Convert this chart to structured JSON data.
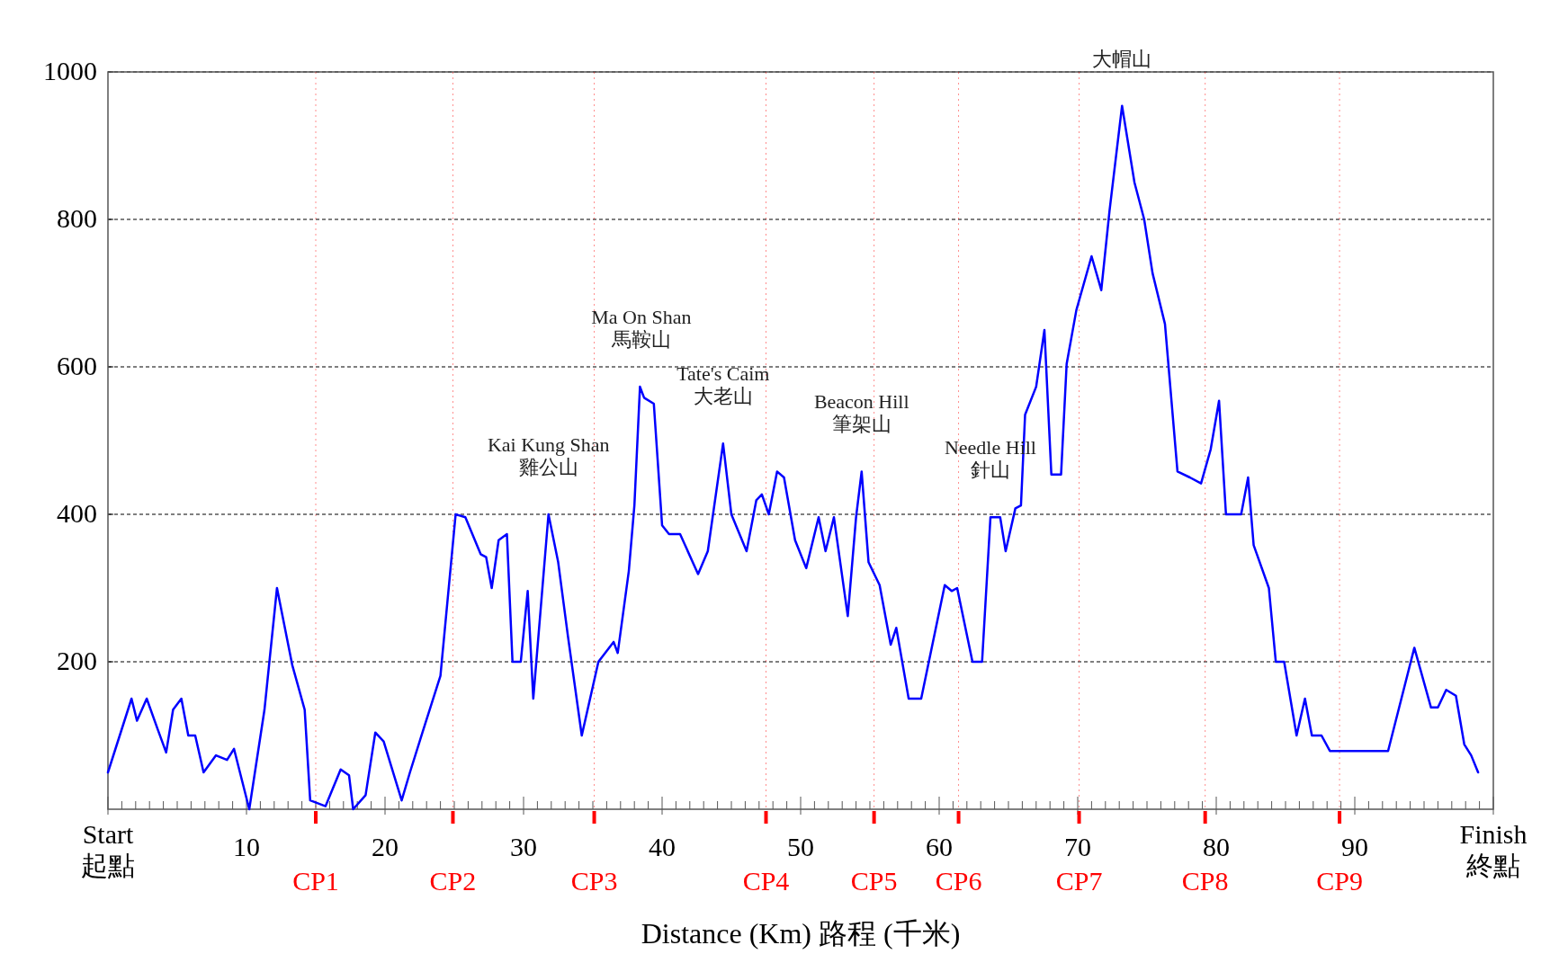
{
  "chart_data": {
    "type": "line",
    "xlabel": "Distance (Km) 路程 (千米)",
    "xlim": [
      0,
      100
    ],
    "ylim": [
      0,
      1000
    ],
    "yticks": [
      200,
      400,
      600,
      800,
      1000
    ],
    "xticks": [
      {
        "value": 0,
        "label": "Start\n起點"
      },
      {
        "value": 1,
        "label": null
      },
      {
        "value": 2,
        "label": null
      },
      {
        "value": 3,
        "label": null
      },
      {
        "value": 4,
        "label": null
      },
      {
        "value": 5,
        "label": null
      },
      {
        "value": 6,
        "label": null
      },
      {
        "value": 7,
        "label": null
      },
      {
        "value": 8,
        "label": null
      },
      {
        "value": 9,
        "label": null
      },
      10,
      {
        "value": 11,
        "label": null
      },
      {
        "value": 12,
        "label": null
      },
      {
        "value": 13,
        "label": null
      },
      {
        "value": 14,
        "label": null
      },
      {
        "value": 15,
        "label": null
      },
      {
        "value": 16,
        "label": null
      },
      {
        "value": 17,
        "label": null
      },
      {
        "value": 18,
        "label": null
      },
      {
        "value": 19,
        "label": null
      },
      20,
      {
        "value": 21,
        "label": null
      },
      {
        "value": 22,
        "label": null
      },
      {
        "value": 23,
        "label": null
      },
      {
        "value": 24,
        "label": null
      },
      {
        "value": 25,
        "label": null
      },
      {
        "value": 26,
        "label": null
      },
      {
        "value": 27,
        "label": null
      },
      {
        "value": 28,
        "label": null
      },
      {
        "value": 29,
        "label": null
      },
      30,
      {
        "value": 31,
        "label": null
      },
      {
        "value": 32,
        "label": null
      },
      {
        "value": 33,
        "label": null
      },
      {
        "value": 34,
        "label": null
      },
      {
        "value": 35,
        "label": null
      },
      {
        "value": 36,
        "label": null
      },
      {
        "value": 37,
        "label": null
      },
      {
        "value": 38,
        "label": null
      },
      {
        "value": 39,
        "label": null
      },
      40,
      {
        "value": 41,
        "label": null
      },
      {
        "value": 42,
        "label": null
      },
      {
        "value": 43,
        "label": null
      },
      {
        "value": 44,
        "label": null
      },
      {
        "value": 45,
        "label": null
      },
      {
        "value": 46,
        "label": null
      },
      {
        "value": 47,
        "label": null
      },
      {
        "value": 48,
        "label": null
      },
      {
        "value": 49,
        "label": null
      },
      50,
      {
        "value": 51,
        "label": null
      },
      {
        "value": 52,
        "label": null
      },
      {
        "value": 53,
        "label": null
      },
      {
        "value": 54,
        "label": null
      },
      {
        "value": 55,
        "label": null
      },
      {
        "value": 56,
        "label": null
      },
      {
        "value": 57,
        "label": null
      },
      {
        "value": 58,
        "label": null
      },
      {
        "value": 59,
        "label": null
      },
      60,
      {
        "value": 61,
        "label": null
      },
      {
        "value": 62,
        "label": null
      },
      {
        "value": 63,
        "label": null
      },
      {
        "value": 64,
        "label": null
      },
      {
        "value": 65,
        "label": null
      },
      {
        "value": 66,
        "label": null
      },
      {
        "value": 67,
        "label": null
      },
      {
        "value": 68,
        "label": null
      },
      {
        "value": 69,
        "label": null
      },
      70,
      {
        "value": 71,
        "label": null
      },
      {
        "value": 72,
        "label": null
      },
      {
        "value": 73,
        "label": null
      },
      {
        "value": 74,
        "label": null
      },
      {
        "value": 75,
        "label": null
      },
      {
        "value": 76,
        "label": null
      },
      {
        "value": 77,
        "label": null
      },
      {
        "value": 78,
        "label": null
      },
      {
        "value": 79,
        "label": null
      },
      80,
      {
        "value": 81,
        "label": null
      },
      {
        "value": 82,
        "label": null
      },
      {
        "value": 83,
        "label": null
      },
      {
        "value": 84,
        "label": null
      },
      {
        "value": 85,
        "label": null
      },
      {
        "value": 86,
        "label": null
      },
      {
        "value": 87,
        "label": null
      },
      {
        "value": 88,
        "label": null
      },
      {
        "value": 89,
        "label": null
      },
      90,
      {
        "value": 91,
        "label": null
      },
      {
        "value": 92,
        "label": null
      },
      {
        "value": 93,
        "label": null
      },
      {
        "value": 94,
        "label": null
      },
      {
        "value": 95,
        "label": null
      },
      {
        "value": 96,
        "label": null
      },
      {
        "value": 97,
        "label": null
      },
      {
        "value": 98,
        "label": null
      },
      {
        "value": 99,
        "label": null
      },
      {
        "value": 100,
        "label": "Finish\n終點"
      }
    ],
    "grid": "y",
    "marker": "none",
    "line_style": "solid",
    "series": [
      {
        "color": "#0000ff",
        "x": [
          0,
          1.7,
          2.1,
          2.8,
          3.6,
          4.2,
          4.7,
          5.3,
          5.8,
          6.3,
          6.9,
          7.8,
          8.6,
          9.1,
          10.2,
          11.3,
          12.2,
          13.3,
          14.2,
          14.6,
          15.7,
          16.8,
          17.4,
          17.7,
          18.6,
          19.3,
          19.9,
          21.2,
          21.8,
          22.7,
          24.0,
          25.1,
          25.8,
          26.9,
          27.3,
          27.7,
          28.2,
          28.8,
          29.2,
          29.8,
          30.3,
          30.7,
          31.8,
          32.5,
          33.2,
          34.2,
          35.4,
          36.5,
          36.8,
          37.6,
          38.0,
          38.4,
          38.7,
          39.4,
          40.0,
          40.5,
          41.3,
          42.6,
          43.3,
          44.4,
          45.0,
          46.1,
          46.8,
          47.2,
          47.7,
          48.3,
          48.8,
          49.6,
          50.4,
          51.3,
          51.8,
          52.4,
          53.4,
          54.0,
          54.4,
          54.9,
          55.7,
          56.5,
          56.9,
          57.8,
          58.7,
          60.4,
          60.9,
          61.3,
          62.4,
          63.1,
          63.7,
          64.4,
          64.8,
          65.5,
          65.9,
          66.2,
          67.0,
          67.6,
          68.1,
          68.8,
          69.2,
          69.9,
          71.0,
          71.7,
          72.3,
          73.2,
          74.1,
          74.8,
          75.4,
          76.3,
          77.2,
          78.1,
          78.9,
          79.6,
          80.2,
          80.7,
          81.8,
          82.3,
          82.7,
          83.8,
          84.3,
          84.9,
          85.8,
          86.4,
          86.9,
          87.6,
          88.2,
          92.4,
          94.3,
          95.5,
          96.0,
          96.6,
          97.3,
          97.9,
          98.4,
          98.9
        ],
        "values": [
          50,
          150,
          120,
          150,
          108,
          77,
          135,
          150,
          100,
          100,
          50,
          73,
          67,
          82,
          0,
          135,
          300,
          196,
          135,
          12,
          4,
          54,
          46,
          0,
          19,
          104,
          92,
          12,
          50,
          104,
          181,
          400,
          396,
          346,
          342,
          300,
          365,
          373,
          200,
          200,
          296,
          150,
          400,
          335,
          235,
          100,
          200,
          227,
          212,
          323,
          412,
          573,
          558,
          550,
          385,
          373,
          373,
          319,
          350,
          496,
          400,
          350,
          419,
          427,
          400,
          458,
          450,
          365,
          327,
          396,
          350,
          396,
          262,
          396,
          458,
          335,
          304,
          223,
          246,
          150,
          150,
          304,
          296,
          300,
          200,
          200,
          396,
          396,
          350,
          408,
          412,
          535,
          573,
          650,
          454,
          454,
          604,
          677,
          750,
          704,
          812,
          954,
          850,
          800,
          727,
          658,
          458,
          450,
          442,
          488,
          554,
          400,
          400,
          450,
          358,
          300,
          200,
          200,
          100,
          150,
          100,
          100,
          79,
          79,
          219,
          138,
          138,
          162,
          154,
          88,
          73,
          50
        ]
      }
    ],
    "ref_lines": [
      {
        "axis": "x",
        "value": 15.0,
        "label": "CP1",
        "color": "#ff0000"
      },
      {
        "axis": "x",
        "value": 24.9,
        "label": "CP2",
        "color": "#ff0000"
      },
      {
        "axis": "x",
        "value": 35.1,
        "label": "CP3",
        "color": "#ff0000"
      },
      {
        "axis": "x",
        "value": 47.5,
        "label": "CP4",
        "color": "#ff0000"
      },
      {
        "axis": "x",
        "value": 55.3,
        "label": "CP5",
        "color": "#ff0000"
      },
      {
        "axis": "x",
        "value": 61.4,
        "label": "CP6",
        "color": "#ff0000"
      },
      {
        "axis": "x",
        "value": 70.1,
        "label": "CP7",
        "color": "#ff0000"
      },
      {
        "axis": "x",
        "value": 79.2,
        "label": "CP8",
        "color": "#ff0000"
      },
      {
        "axis": "x",
        "value": 88.9,
        "label": "CP9",
        "color": "#ff0000"
      }
    ],
    "annotations": [
      {
        "text": "Kai Kung Shan\n雞公山",
        "x": 31.8,
        "y": 400
      },
      {
        "text": "Ma On Shan\n馬鞍山",
        "x": 38.5,
        "y": 573
      },
      {
        "text": "Tate's Caim\n大老山",
        "x": 44.4,
        "y": 496
      },
      {
        "text": "Beacon Hill\n筆架山",
        "x": 54.4,
        "y": 458
      },
      {
        "text": "Needle Hill\n針山",
        "x": 63.7,
        "y": 396
      },
      {
        "text": "大帽山",
        "x": 73.2,
        "y": 954
      }
    ]
  }
}
